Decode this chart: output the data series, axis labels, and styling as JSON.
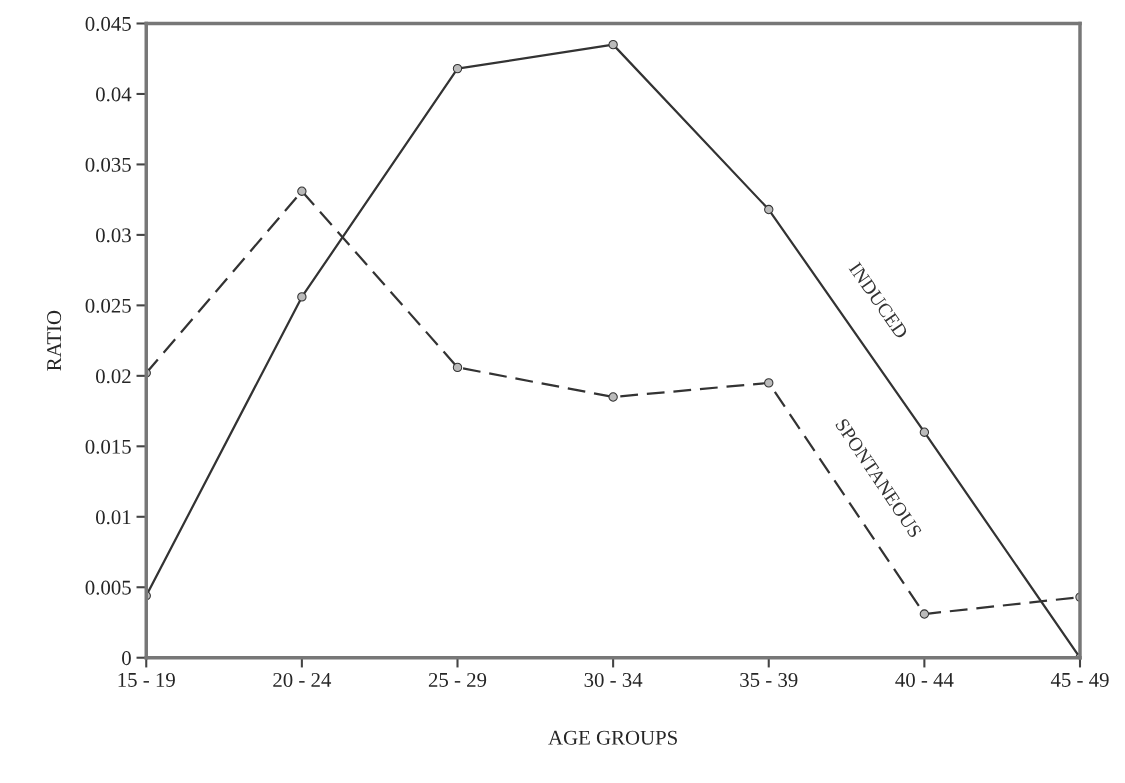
{
  "chart_data": {
    "type": "line",
    "xlabel": "AGE GROUPS",
    "ylabel": "RATIO",
    "categories": [
      "15 - 19",
      "20 - 24",
      "25 - 29",
      "30 - 34",
      "35 - 39",
      "40 - 44",
      "45 - 49"
    ],
    "series": [
      {
        "name": "SPONTANEOUS",
        "color": "#333333",
        "line_style": "dashed",
        "values": [
          0.0202,
          0.0331,
          0.0206,
          0.0185,
          0.0195,
          0.0031,
          0.0043
        ]
      },
      {
        "name": "INDUCED",
        "color": "#333333",
        "line_style": "solid",
        "values": [
          0.0044,
          0.0256,
          0.0418,
          0.0435,
          0.0318,
          0.016,
          0.0
        ]
      }
    ],
    "ylim": [
      0,
      0.045
    ],
    "yticks": [
      0,
      0.005,
      0.01,
      0.015,
      0.02,
      0.025,
      0.03,
      0.035,
      0.04,
      0.045
    ],
    "marker": "circle",
    "grid": false,
    "legend": false
  }
}
